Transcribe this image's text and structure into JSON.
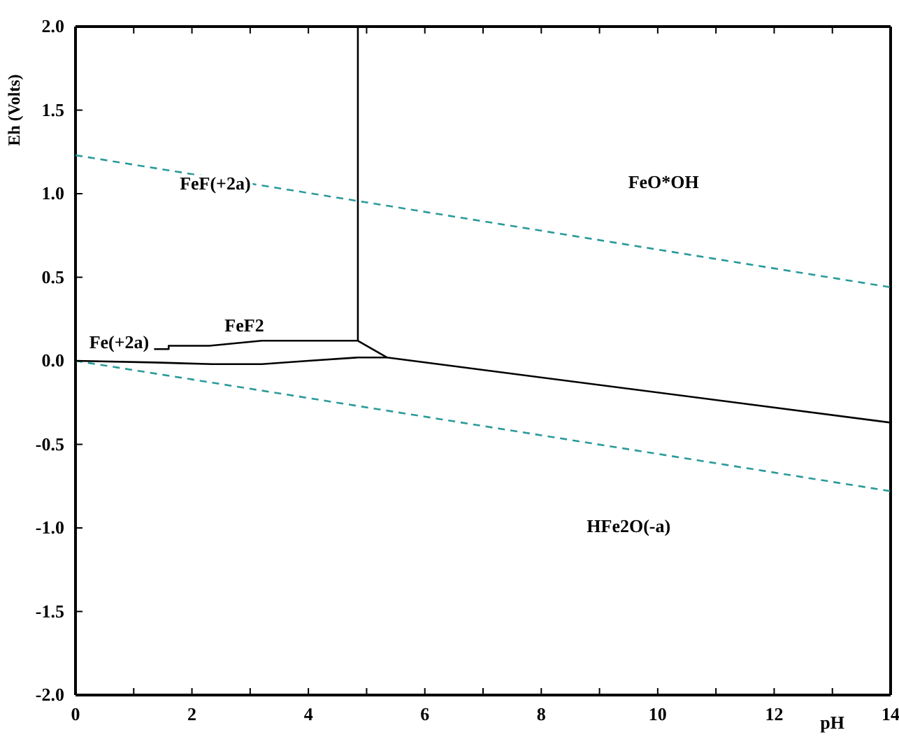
{
  "chart_data": {
    "type": "line",
    "xlabel": "pH",
    "ylabel": "Eh (Volts)",
    "xlim": [
      0,
      14
    ],
    "ylim": [
      -2.0,
      2.0
    ],
    "xticks": [
      0,
      {
        "value": 1,
        "label": null
      },
      2,
      {
        "value": 3,
        "label": null
      },
      4,
      {
        "value": 5,
        "label": null
      },
      6,
      {
        "value": 7,
        "label": null
      },
      8,
      {
        "value": 9,
        "label": null
      },
      10,
      {
        "value": 11,
        "label": null
      },
      12,
      {
        "value": 13,
        "label": null
      },
      14
    ],
    "yticks": [
      {
        "value": -2,
        "label": "-2.0"
      },
      {
        "value": -1.5,
        "label": "-1.5"
      },
      {
        "value": -1,
        "label": "-1.0"
      },
      {
        "value": -0.5,
        "label": "-0.5"
      },
      {
        "value": 0,
        "label": "0.0"
      },
      {
        "value": 0.5,
        "label": "0.5"
      },
      {
        "value": 1,
        "label": "1.0"
      },
      {
        "value": 1.5,
        "label": "1.5"
      },
      {
        "value": 2,
        "label": "2.0"
      }
    ],
    "grid": false,
    "series": [
      {
        "color": "#2a9a9a",
        "line_style": "dashed",
        "x": [
          0,
          14
        ],
        "values": [
          1.23,
          0.44
        ]
      },
      {
        "color": "#2a9a9a",
        "line_style": "dashed",
        "x": [
          0,
          14
        ],
        "values": [
          0.0,
          -0.78
        ]
      },
      {
        "color": "#000000",
        "line_style": "solid",
        "x": [
          4.85,
          4.85
        ],
        "values": [
          2.0,
          0.12
        ]
      },
      {
        "color": "#000000",
        "line_style": "solid",
        "x": [
          1.35,
          1.6,
          1.6,
          2.3,
          3.2,
          4.85,
          5.35,
          14
        ],
        "values": [
          0.07,
          0.07,
          0.09,
          0.09,
          0.12,
          0.12,
          0.02,
          -0.37
        ]
      },
      {
        "color": "#000000",
        "line_style": "solid",
        "x": [
          0,
          1.35,
          2.35,
          3.2,
          4.0,
          4.85,
          5.35
        ],
        "values": [
          0.0,
          -0.01,
          -0.02,
          -0.02,
          0.0,
          0.02,
          0.02
        ]
      }
    ],
    "annotations": [
      "FeF(+2a)",
      "FeO*OH",
      "Fe(+2a)",
      "FeF2",
      "HFe2O(-a)"
    ]
  }
}
